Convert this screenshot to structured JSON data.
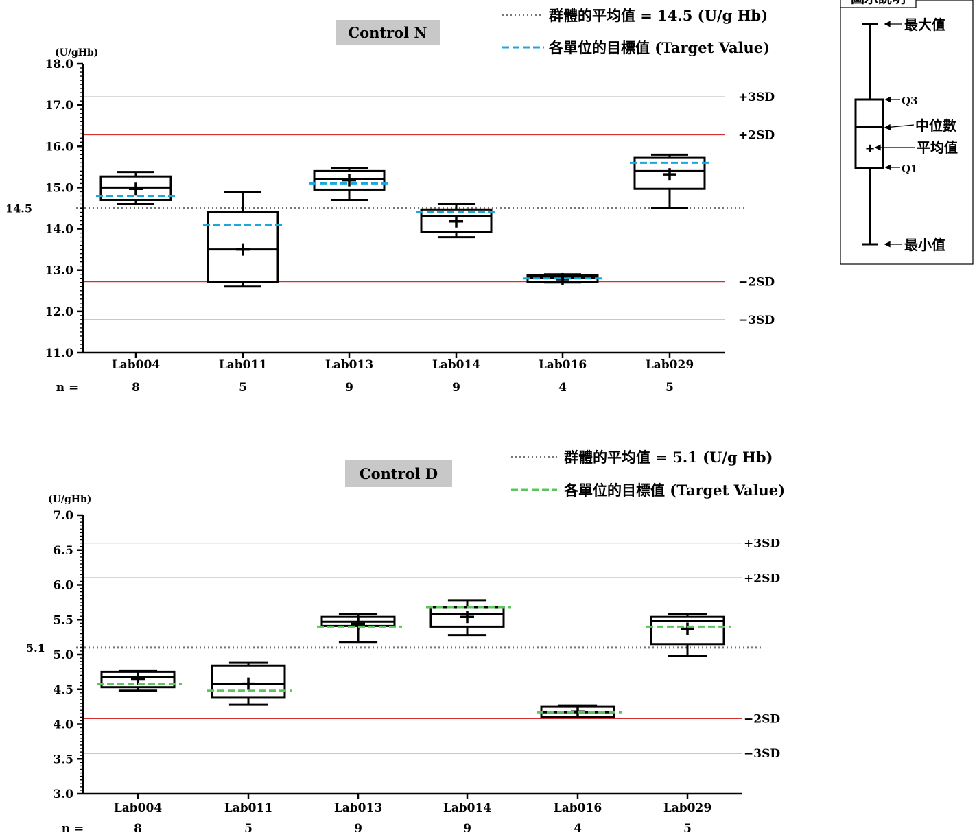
{
  "legend_box": {
    "title": "圖示說明",
    "labels": {
      "max": "最大值",
      "q3": "Q3",
      "median": "中位數",
      "mean": "平均值",
      "q1": "Q1",
      "min": "最小值"
    }
  },
  "chart_data": [
    {
      "type": "boxplot",
      "title": "Control N",
      "unit_label": "(U/gHb)",
      "legend": {
        "group_mean_label": "群體的平均值 = 14.5 (U/g Hb)",
        "target_label": "各單位的目標值 (Target Value)"
      },
      "colors": {
        "target": "#1ba8dc",
        "sd2": "#d32f2f",
        "sd3": "#b5b5b5",
        "mean": "#777777"
      },
      "ylim": [
        11.0,
        18.0
      ],
      "yticks": [
        "11.0",
        "12.0",
        "13.0",
        "14.0",
        "15.0",
        "16.0",
        "17.0",
        "18.0"
      ],
      "group_mean": 14.5,
      "group_mean_text": "14.5",
      "sd_lines": [
        {
          "label": "+3SD",
          "value": 17.2,
          "kind": "sd3"
        },
        {
          "label": "+2SD",
          "value": 16.28,
          "kind": "sd2"
        },
        {
          "label": "−2SD",
          "value": 12.72,
          "kind": "sd2"
        },
        {
          "label": "−3SD",
          "value": 11.8,
          "kind": "sd3"
        }
      ],
      "n_label": "n =",
      "groups": [
        {
          "label": "Lab004",
          "n": "8",
          "min": 14.6,
          "q1": 14.7,
          "median": 15.0,
          "q3": 15.27,
          "max": 15.38,
          "mean": 14.97,
          "target": 14.8
        },
        {
          "label": "Lab011",
          "n": "5",
          "min": 12.6,
          "q1": 12.72,
          "median": 13.5,
          "q3": 14.4,
          "max": 14.9,
          "mean": 13.5,
          "target": 14.1
        },
        {
          "label": "Lab013",
          "n": "9",
          "min": 14.7,
          "q1": 14.95,
          "median": 15.2,
          "q3": 15.4,
          "max": 15.48,
          "mean": 15.18,
          "target": 15.1
        },
        {
          "label": "Lab014",
          "n": "9",
          "min": 13.8,
          "q1": 13.92,
          "median": 14.3,
          "q3": 14.47,
          "max": 14.6,
          "mean": 14.18,
          "target": 14.4
        },
        {
          "label": "Lab016",
          "n": "4",
          "min": 12.7,
          "q1": 12.72,
          "median": 12.82,
          "q3": 12.88,
          "max": 12.9,
          "mean": 12.78,
          "target": 12.8
        },
        {
          "label": "Lab029",
          "n": "5",
          "min": 14.5,
          "q1": 14.97,
          "median": 15.4,
          "q3": 15.72,
          "max": 15.8,
          "mean": 15.32,
          "target": 15.6
        }
      ]
    },
    {
      "type": "boxplot",
      "title": "Control D",
      "unit_label": "(U/gHb)",
      "legend": {
        "group_mean_label": "群體的平均值 = 5.1 (U/g Hb)",
        "target_label": "各單位的目標值 (Target Value)"
      },
      "colors": {
        "target": "#5cc45c",
        "sd2": "#d32f2f",
        "sd3": "#b5b5b5",
        "mean": "#777777"
      },
      "ylim": [
        3.0,
        7.0
      ],
      "yticks": [
        "3.0",
        "3.5",
        "4.0",
        "4.5",
        "5.0",
        "5.5",
        "6.0",
        "6.5",
        "7.0"
      ],
      "group_mean": 5.1,
      "group_mean_text": "5.1",
      "sd_lines": [
        {
          "label": "+3SD",
          "value": 6.6,
          "kind": "sd3"
        },
        {
          "label": "+2SD",
          "value": 6.1,
          "kind": "sd2"
        },
        {
          "label": "−2SD",
          "value": 4.08,
          "kind": "sd2"
        },
        {
          "label": "−3SD",
          "value": 3.58,
          "kind": "sd3"
        }
      ],
      "n_label": "n =",
      "groups": [
        {
          "label": "Lab004",
          "n": "8",
          "min": 4.48,
          "q1": 4.53,
          "median": 4.68,
          "q3": 4.75,
          "max": 4.77,
          "mean": 4.65,
          "target": 4.58
        },
        {
          "label": "Lab011",
          "n": "5",
          "min": 4.28,
          "q1": 4.38,
          "median": 4.58,
          "q3": 4.84,
          "max": 4.88,
          "mean": 4.58,
          "target": 4.48
        },
        {
          "label": "Lab013",
          "n": "9",
          "min": 5.18,
          "q1": 5.41,
          "median": 5.47,
          "q3": 5.54,
          "max": 5.58,
          "mean": 5.44,
          "target": 5.4
        },
        {
          "label": "Lab014",
          "n": "9",
          "min": 5.28,
          "q1": 5.4,
          "median": 5.58,
          "q3": 5.68,
          "max": 5.78,
          "mean": 5.54,
          "target": 5.68
        },
        {
          "label": "Lab016",
          "n": "4",
          "min": 4.1,
          "q1": 4.1,
          "median": 4.17,
          "q3": 4.25,
          "max": 4.27,
          "mean": 4.18,
          "target": 4.17
        },
        {
          "label": "Lab029",
          "n": "5",
          "min": 4.98,
          "q1": 5.15,
          "median": 5.48,
          "q3": 5.54,
          "max": 5.58,
          "mean": 5.37,
          "target": 5.4
        }
      ]
    }
  ]
}
